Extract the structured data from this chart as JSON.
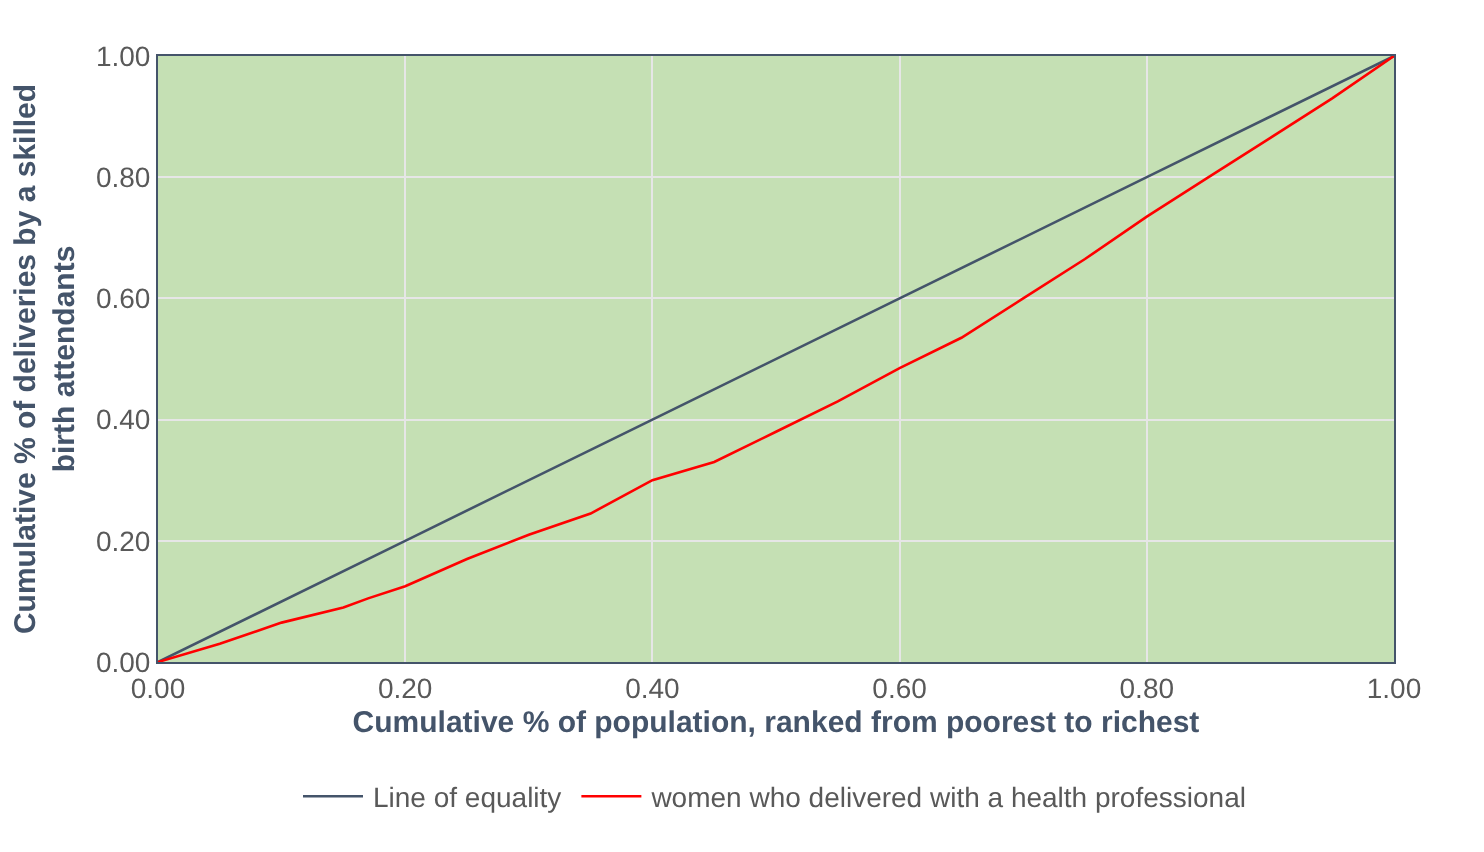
{
  "chart_data": {
    "type": "line",
    "xlabel": "Cumulative % of population, ranked from poorest to richest",
    "ylabel": "Cumulative % of deliveries by a skilled birth attendants",
    "xlim": [
      0,
      1
    ],
    "ylim": [
      0,
      1
    ],
    "xticks": [
      {
        "value": 0,
        "label": "0.00"
      },
      {
        "value": 0.2,
        "label": "0.20"
      },
      {
        "value": 0.4,
        "label": "0.40"
      },
      {
        "value": 0.6,
        "label": "0.60"
      },
      {
        "value": 0.8,
        "label": "0.80"
      },
      {
        "value": 1,
        "label": "1.00"
      }
    ],
    "yticks": [
      {
        "value": 0,
        "label": "0.00"
      },
      {
        "value": 0.2,
        "label": "0.20"
      },
      {
        "value": 0.4,
        "label": "0.40"
      },
      {
        "value": 0.6,
        "label": "0.60"
      },
      {
        "value": 0.8,
        "label": "0.80"
      },
      {
        "value": 1,
        "label": "1.00"
      }
    ],
    "grid": true,
    "legend": "bottom",
    "marker": "none",
    "line_style": "solid",
    "series": [
      {
        "name": "Line of equality",
        "color": "#44546a",
        "x": [
          0,
          0.2,
          0.4,
          0.6,
          0.8,
          1
        ],
        "values": [
          0,
          0.2,
          0.4,
          0.6,
          0.8,
          1
        ]
      },
      {
        "name": "women who delivered with a health professional",
        "color": "#ff0000",
        "x": [
          0,
          0.05,
          0.1,
          0.15,
          0.17,
          0.2,
          0.25,
          0.3,
          0.35,
          0.4,
          0.45,
          0.5,
          0.55,
          0.6,
          0.65,
          0.7,
          0.75,
          0.8,
          0.85,
          0.9,
          0.95,
          1
        ],
        "values": [
          0,
          0.03,
          0.065,
          0.09,
          0.105,
          0.125,
          0.17,
          0.21,
          0.245,
          0.3,
          0.33,
          0.38,
          0.43,
          0.485,
          0.535,
          0.6,
          0.665,
          0.735,
          0.8,
          0.865,
          0.93,
          1
        ]
      }
    ]
  }
}
